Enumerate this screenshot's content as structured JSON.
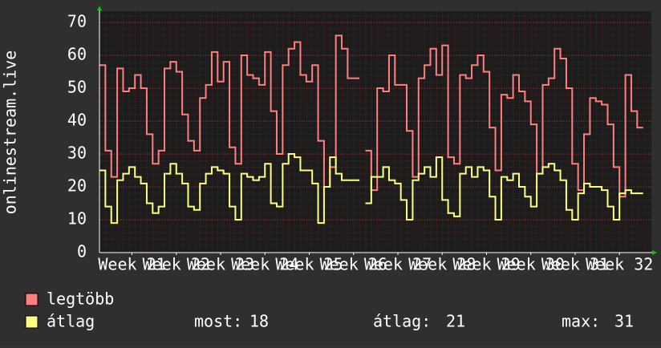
{
  "chart_data": {
    "type": "step-line",
    "y_label": "onlinestream.live",
    "ylim": [
      0,
      73.4
    ],
    "yticks": [
      0,
      10,
      20,
      30,
      40,
      50,
      60,
      70
    ],
    "grid": true,
    "xlim": [
      0,
      93.4
    ],
    "xticks": [
      {
        "value": 5.5,
        "label": "Week 21"
      },
      {
        "value": 13,
        "label": "Week 22"
      },
      {
        "value": 20.5,
        "label": "Week 23"
      },
      {
        "value": 28,
        "label": "Week 24"
      },
      {
        "value": 35.5,
        "label": "Week 25"
      },
      {
        "value": 43,
        "label": "Week 26"
      },
      {
        "value": 50.5,
        "label": "Week 27"
      },
      {
        "value": 58,
        "label": "Week 28"
      },
      {
        "value": 65.5,
        "label": "Week 29"
      },
      {
        "value": 73,
        "label": "Week 30"
      },
      {
        "value": 80.5,
        "label": "Week 31"
      },
      {
        "value": 88,
        "label": "Week 32"
      }
    ],
    "series": [
      {
        "name": "legtöbb",
        "color": "#ff7f7f",
        "values": [
          57,
          31,
          23,
          56,
          49,
          50,
          54,
          50,
          36,
          27,
          31,
          56,
          58,
          55,
          42,
          34,
          31,
          47,
          51,
          61,
          52,
          58,
          32,
          27,
          60,
          54,
          53,
          51,
          61,
          43,
          30,
          57,
          62,
          64,
          54,
          52,
          57,
          34,
          20,
          26,
          66,
          62,
          53,
          53,
          null,
          31,
          19,
          50,
          49,
          60,
          51,
          51,
          37,
          23,
          53,
          57,
          62,
          54,
          63,
          29,
          27,
          54,
          53,
          57,
          60,
          55,
          38,
          25,
          48,
          47,
          54,
          49,
          46,
          39,
          24,
          51,
          53,
          62,
          59,
          50,
          27,
          19,
          36,
          47,
          46,
          45,
          39,
          26,
          17,
          54,
          43,
          38
        ]
      },
      {
        "name": "átlag",
        "color": "#ffff7f",
        "values": [
          25,
          14,
          9,
          22,
          24,
          26,
          23,
          21,
          15,
          12,
          14,
          24,
          27,
          24,
          21,
          14,
          13,
          21,
          24,
          26,
          25,
          24,
          14,
          10,
          24,
          23,
          22,
          23,
          27,
          15,
          14,
          27,
          30,
          29,
          25,
          25,
          21,
          9,
          20,
          29,
          24,
          22,
          22,
          22,
          null,
          15,
          23,
          23,
          26,
          22,
          21,
          16,
          10,
          22,
          24,
          26,
          23,
          29,
          16,
          12,
          11,
          24,
          26,
          23,
          26,
          25,
          17,
          10,
          23,
          22,
          24,
          20,
          17,
          14,
          24,
          26,
          27,
          25,
          22,
          13,
          10,
          18,
          21,
          20,
          20,
          19,
          14,
          10,
          18,
          19,
          18,
          18
        ]
      }
    ],
    "stats": [
      {
        "label": "most:",
        "value": 18
      },
      {
        "label": "átlag:",
        "value": 21
      },
      {
        "label": "max:",
        "value": 31
      }
    ]
  }
}
